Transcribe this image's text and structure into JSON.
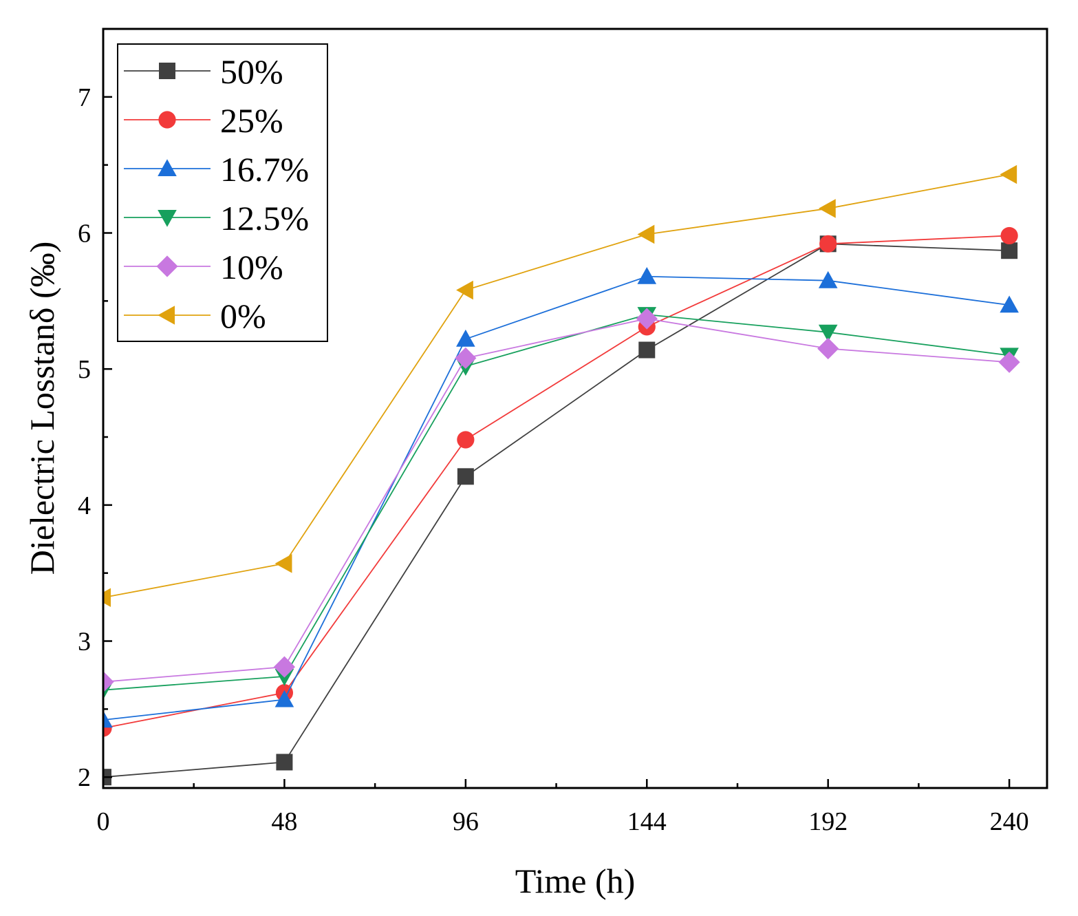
{
  "chart_data": {
    "type": "line",
    "title": "",
    "xlabel": "Time (h)",
    "ylabel": "Dielectric Losstanδ (‰)",
    "x": [
      0,
      48,
      96,
      144,
      192,
      240
    ],
    "xlim": [
      0,
      250
    ],
    "ylim": [
      1.92,
      7.5
    ],
    "xticks": [
      0,
      48,
      96,
      144,
      192,
      240
    ],
    "xtick_labels": [
      "0",
      "48",
      "96",
      "144",
      "192",
      "240"
    ],
    "yticks": [
      2,
      3,
      4,
      5,
      6,
      7
    ],
    "ytick_labels": [
      "2",
      "3",
      "4",
      "5",
      "6",
      "7"
    ],
    "grid": false,
    "legend_position": "top-left",
    "series": [
      {
        "name": "50%",
        "marker": "square",
        "color": "#404040",
        "values": [
          2.0,
          2.11,
          4.21,
          5.14,
          5.92,
          5.87
        ]
      },
      {
        "name": "25%",
        "marker": "circle",
        "color": "#f23a3a",
        "values": [
          2.36,
          2.62,
          4.48,
          5.31,
          5.92,
          5.98
        ]
      },
      {
        "name": "16.7%",
        "marker": "triangle-up",
        "color": "#1c6fd9",
        "values": [
          2.42,
          2.57,
          5.22,
          5.68,
          5.65,
          5.47
        ]
      },
      {
        "name": "12.5%",
        "marker": "triangle-down",
        "color": "#17a05d",
        "values": [
          2.64,
          2.74,
          5.02,
          5.4,
          5.27,
          5.1
        ]
      },
      {
        "name": "10%",
        "marker": "diamond",
        "color": "#c878e0",
        "values": [
          2.7,
          2.81,
          5.08,
          5.37,
          5.15,
          5.05
        ]
      },
      {
        "name": "0%",
        "marker": "triangle-left",
        "color": "#e0a20e",
        "values": [
          3.32,
          3.57,
          5.58,
          5.99,
          6.18,
          6.43
        ]
      }
    ]
  }
}
